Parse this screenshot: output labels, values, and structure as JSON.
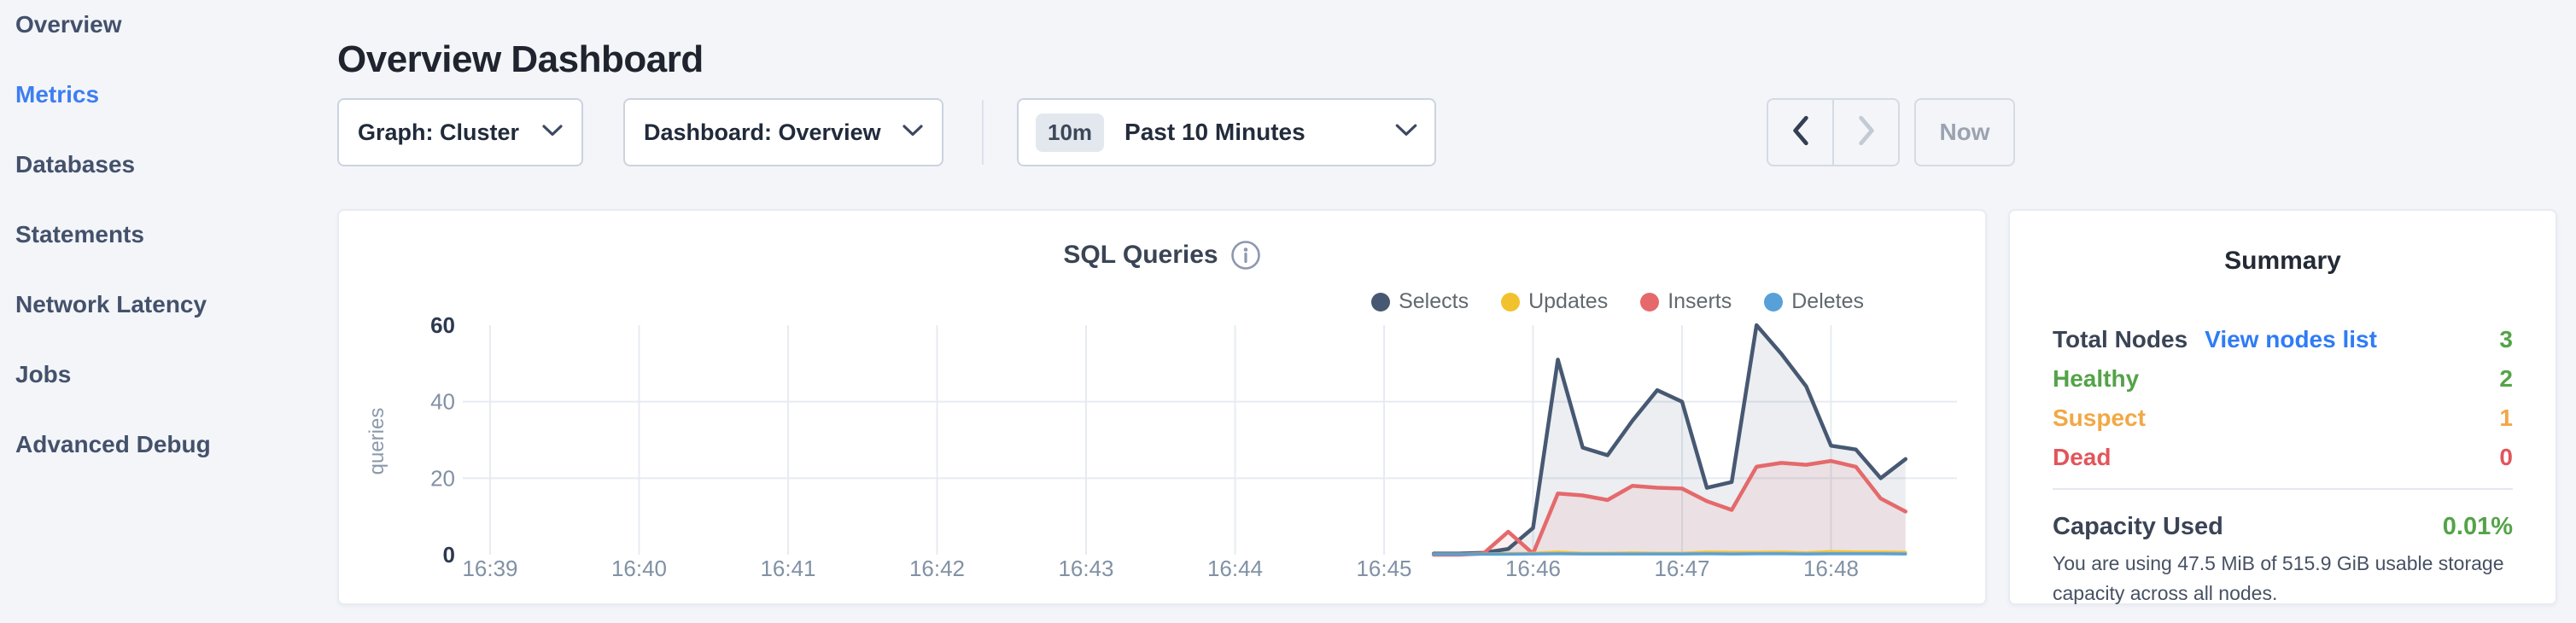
{
  "sidebar": {
    "items": [
      {
        "label": "Overview",
        "active": false
      },
      {
        "label": "Metrics",
        "active": true
      },
      {
        "label": "Databases",
        "active": false
      },
      {
        "label": "Statements",
        "active": false
      },
      {
        "label": "Network Latency",
        "active": false
      },
      {
        "label": "Jobs",
        "active": false
      },
      {
        "label": "Advanced Debug",
        "active": false
      }
    ],
    "active_color": "#3e7ef0"
  },
  "header": {
    "title": "Overview Dashboard"
  },
  "controls": {
    "graph_dropdown_label": "Graph: Cluster",
    "dashboard_dropdown_label": "Dashboard: Overview",
    "time_range": {
      "badge": "10m",
      "label": "Past 10 Minutes"
    },
    "now_label": "Now"
  },
  "chart_data": {
    "type": "area",
    "title": "SQL Queries",
    "ylabel": "queries",
    "ylim": [
      0,
      60
    ],
    "yticks": [
      0,
      20,
      40,
      60
    ],
    "grid": "on",
    "legend_position": "top-right",
    "xticks": [
      "16:39",
      "16:40",
      "16:41",
      "16:42",
      "16:43",
      "16:44",
      "16:45",
      "16:46",
      "16:47",
      "16:48"
    ],
    "x_times": [
      "16:45:20",
      "16:45:30",
      "16:45:40",
      "16:45:50",
      "16:46:00",
      "16:46:10",
      "16:46:20",
      "16:46:30",
      "16:46:40",
      "16:46:50",
      "16:47:00",
      "16:47:10",
      "16:47:20",
      "16:47:30",
      "16:47:40",
      "16:47:50",
      "16:48:00",
      "16:48:10",
      "16:48:20",
      "16:48:30"
    ],
    "series": [
      {
        "name": "Selects",
        "color": "#475872",
        "fill": "rgba(71,88,114,0.10)",
        "values": [
          0.3,
          0.3,
          0.5,
          1.5,
          7,
          51,
          28,
          26,
          35,
          43,
          40,
          17.5,
          19,
          60,
          52.5,
          44,
          28.5,
          27.5,
          20,
          25
        ]
      },
      {
        "name": "Updates",
        "color": "#f2c12e",
        "fill": "none",
        "values": [
          0.2,
          0.2,
          0.2,
          0.3,
          0.4,
          0.7,
          0.4,
          0.4,
          0.5,
          0.4,
          0.4,
          0.7,
          0.6,
          0.6,
          0.7,
          0.5,
          0.8,
          0.7,
          0.7,
          0.6
        ]
      },
      {
        "name": "Inserts",
        "color": "#e5696b",
        "fill": "rgba(229,105,107,0.10)",
        "values": [
          0,
          0,
          0.3,
          6,
          0.3,
          16,
          15.5,
          14.3,
          18,
          17.5,
          17.3,
          14,
          11.7,
          23,
          24,
          23.5,
          24.5,
          23,
          14.7,
          11.3
        ]
      },
      {
        "name": "Deletes",
        "color": "#58a0d8",
        "fill": "none",
        "values": [
          0.15,
          0.15,
          0.15,
          0.15,
          0.2,
          0.25,
          0.2,
          0.2,
          0.2,
          0.2,
          0.2,
          0.25,
          0.2,
          0.25,
          0.25,
          0.2,
          0.25,
          0.25,
          0.25,
          0.2
        ]
      }
    ]
  },
  "summary": {
    "title": "Summary",
    "total_label": "Total Nodes",
    "link": "View nodes list",
    "link_color": "#2f7cf6",
    "total_value": "3",
    "total_value_color": "#54a348",
    "rows": [
      {
        "label": "Healthy",
        "value": "2",
        "color": "#54a348"
      },
      {
        "label": "Suspect",
        "value": "1",
        "color": "#f1a845"
      },
      {
        "label": "Dead",
        "value": "0",
        "color": "#e2555c"
      }
    ],
    "capacity_label": "Capacity Used",
    "capacity_value": "0.01%",
    "capacity_color": "#54a348",
    "description": "You are using 47.5 MiB of 515.9 GiB usable storage capacity across all nodes."
  }
}
